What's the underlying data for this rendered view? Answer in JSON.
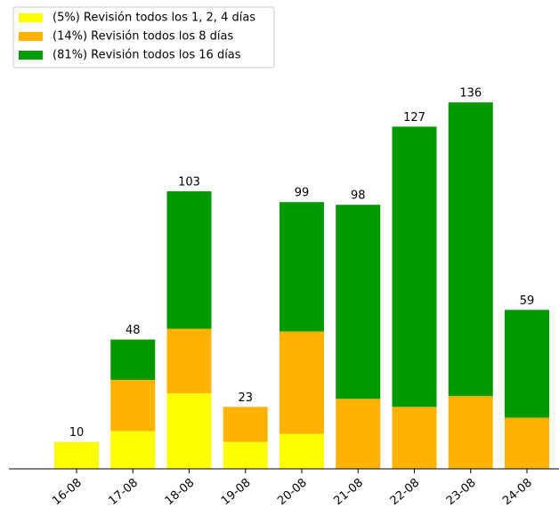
{
  "chart_data": {
    "type": "stacked_bar",
    "categories": [
      "16-08",
      "17-08",
      "18-08",
      "19-08",
      "20-08",
      "21-08",
      "22-08",
      "23-08",
      "24-08"
    ],
    "series": [
      {
        "name": "(5%) Revisión todos los 1, 2, 4 días",
        "color": "#ffff00",
        "values": [
          10,
          14,
          28,
          10,
          13,
          0,
          0,
          0,
          0
        ]
      },
      {
        "name": "(14%) Revisión todos los 8 días",
        "color": "#ffb300",
        "values": [
          0,
          19,
          24,
          13,
          38,
          26,
          23,
          27,
          19
        ]
      },
      {
        "name": "(81%) Revisión todos los 16 días",
        "color": "#009900",
        "values": [
          0,
          15,
          51,
          0,
          48,
          72,
          104,
          109,
          40
        ]
      }
    ],
    "totals": [
      10,
      48,
      103,
      23,
      99,
      98,
      127,
      136,
      59
    ],
    "ylim": [
      0,
      140
    ],
    "legend": "upper left"
  }
}
